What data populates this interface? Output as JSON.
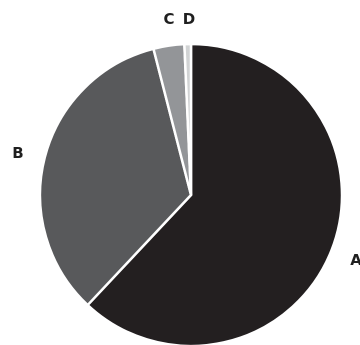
{
  "chart_data": {
    "type": "pie",
    "title": "",
    "legend": "none",
    "start": "top",
    "direction": "clockwise",
    "slices": [
      {
        "label": "A",
        "value": 62.0,
        "color": "#231f20"
      },
      {
        "label": "B",
        "value": 34.0,
        "color": "#58595b"
      },
      {
        "label": "C",
        "value": 3.3,
        "color": "#939598"
      },
      {
        "label": "D",
        "value": 0.7,
        "color": "#d1d3d4"
      }
    ]
  }
}
